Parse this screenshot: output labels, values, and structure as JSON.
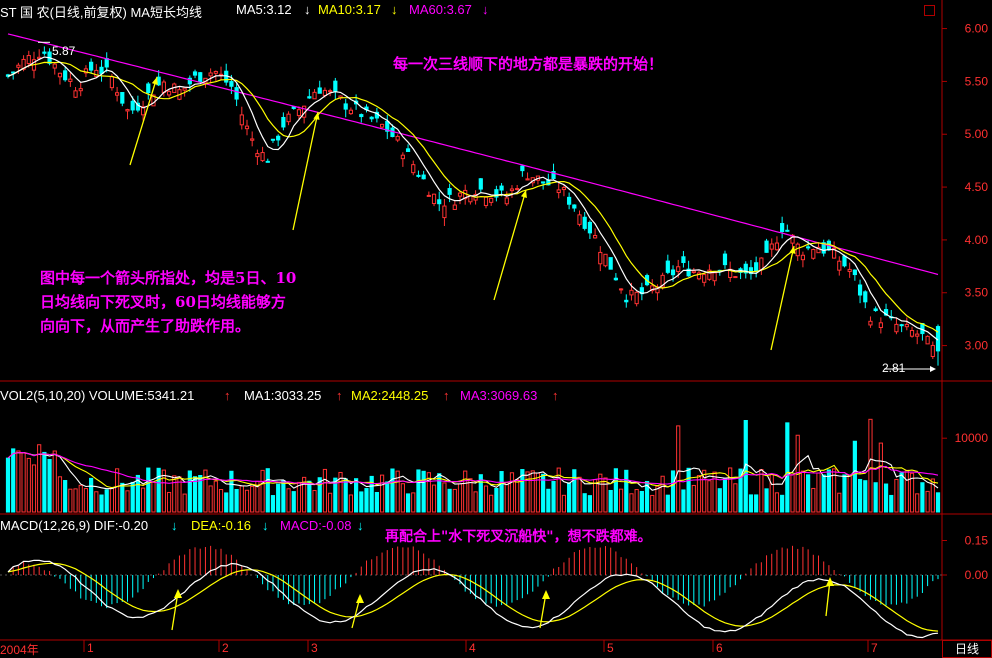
{
  "header": {
    "title": "ST 国 农(日线,前复权) MA短长均线",
    "ma5": "MA5:3.12",
    "ma10": "MA10:3.17",
    "ma60": "MA60:3.67",
    "high_label": "5.87",
    "low_label": "2.81"
  },
  "annotations": {
    "top": "每一次三线顺下的地方都是暴跌的开始！",
    "middle_lines": [
      "图中每一个箭头所指处，均是5日、10",
      "日均线向下死叉时，60日均线能够方",
      "向向下，从而产生了助跌作用。"
    ],
    "macd": "再配合上\"水下死叉沉船快\"，想不跌都难。"
  },
  "volume_header": {
    "title": "VOL2(5,10,20) VOLUME:5341.21",
    "ma1": "MA1:3033.25",
    "ma2": "MA2:2448.25",
    "ma3": "MA3:3069.63"
  },
  "macd_header": {
    "title": "MACD(12,26,9) DIF:-0.20",
    "dea": "DEA:-0.16",
    "macd": "MACD:-0.08"
  },
  "footer": {
    "period_label": "日线",
    "year_label": "2004年"
  },
  "colors": {
    "up": "#ff3232",
    "down": "#00ffff",
    "ma5": "#ffffff",
    "ma10": "#ffff00",
    "ma60": "#ff00ff",
    "axis": "#b00000",
    "arrow": "#ffff00"
  },
  "chart_data": [
    {
      "type": "candlestick",
      "title": "ST 国 农(日线,前复权) MA短长均线",
      "ylim": [
        2.75,
        6.1
      ],
      "yticks": [
        "6.00",
        "5.50",
        "5.00",
        "4.50",
        "4.00",
        "3.50",
        "3.00"
      ],
      "xticks": [
        "2004年",
        "1",
        "2",
        "3",
        "4",
        "5",
        "6",
        "7"
      ],
      "series": [
        {
          "name": "MA5",
          "last": 3.12
        },
        {
          "name": "MA10",
          "last": 3.17
        },
        {
          "name": "MA60",
          "last": 3.67
        }
      ],
      "close_path": [
        5.55,
        5.7,
        5.8,
        5.6,
        5.45,
        5.65,
        5.55,
        5.2,
        5.35,
        5.5,
        5.4,
        5.55,
        5.6,
        5.45,
        5.0,
        4.75,
        5.1,
        5.25,
        5.45,
        5.35,
        5.25,
        5.15,
        5.05,
        4.85,
        4.6,
        4.35,
        4.4,
        4.5,
        4.45,
        4.4,
        4.65,
        4.55,
        4.5,
        4.3,
        4.05,
        3.75,
        3.45,
        3.5,
        3.6,
        3.75,
        3.7,
        3.75,
        3.7,
        3.65,
        3.8,
        4.15,
        3.9,
        3.95,
        3.85,
        3.7,
        3.3,
        3.25,
        3.15,
        3.1,
        2.9
      ],
      "high": 5.87,
      "low": 2.81
    },
    {
      "type": "bar",
      "title": "VOL2(5,10,20)",
      "yticks": [
        "10000"
      ],
      "series": [
        {
          "name": "VOLUME",
          "last": 5341.21
        },
        {
          "name": "MA1",
          "last": 3033.25
        },
        {
          "name": "MA2",
          "last": 2448.25
        },
        {
          "name": "MA3",
          "last": 3069.63
        }
      ]
    },
    {
      "type": "bar",
      "title": "MACD(12,26,9)",
      "yticks": [
        "0.15",
        "0.00"
      ],
      "series": [
        {
          "name": "DIF",
          "last": -0.2
        },
        {
          "name": "DEA",
          "last": -0.16
        },
        {
          "name": "MACD",
          "last": -0.08
        }
      ]
    }
  ]
}
